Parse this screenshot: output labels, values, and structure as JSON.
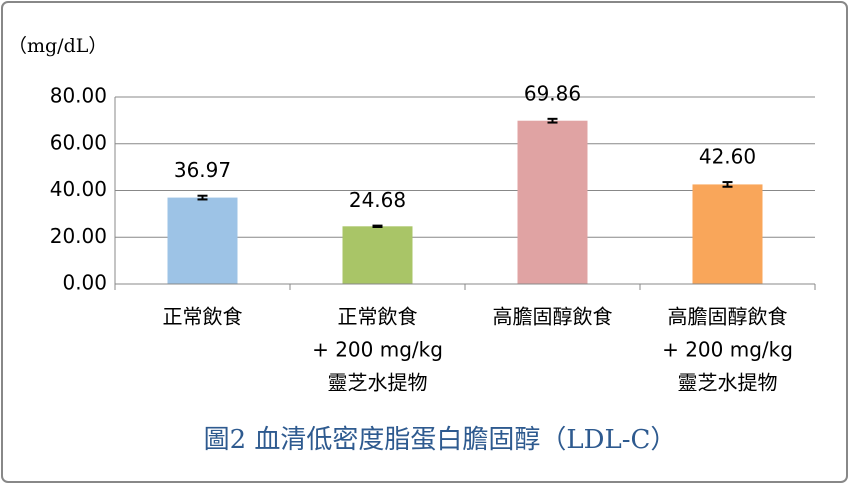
{
  "chart_data": {
    "type": "bar",
    "title": "圖2  血清低密度脂蛋白膽固醇（LDL-C）",
    "y_label": "（mg/dL）",
    "categories": [
      [
        "正常飲食"
      ],
      [
        "正常飲食",
        "+ 200 mg/kg",
        "靈芝水提物"
      ],
      [
        "高膽固醇飲食"
      ],
      [
        "高膽固醇飲食",
        "+ 200 mg/kg",
        "靈芝水提物"
      ]
    ],
    "values": [
      36.97,
      24.68,
      69.86,
      42.6
    ],
    "value_labels": [
      "36.97",
      "24.68",
      "69.86",
      "42.60"
    ],
    "errors": [
      0.8,
      0.3,
      0.8,
      1.0
    ],
    "colors": [
      "#9dc3e6",
      "#a9c567",
      "#e0a3a3",
      "#f9a65a"
    ],
    "ylim": [
      0,
      80
    ],
    "yticks": [
      {
        "value": 0,
        "label": "0.00"
      },
      {
        "value": 20,
        "label": "20.00"
      },
      {
        "value": 40,
        "label": "40.00"
      },
      {
        "value": 60,
        "label": "60.00"
      },
      {
        "value": 80,
        "label": "80.00"
      }
    ],
    "grid": true
  }
}
